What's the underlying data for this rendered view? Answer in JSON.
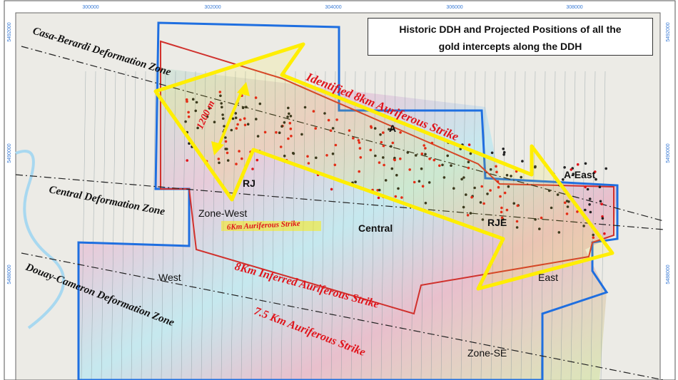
{
  "title": {
    "line1": "Historic DDH and Projected Positions of all the",
    "line2": "gold intercepts along the DDH"
  },
  "axes": {
    "easting_ticks": [
      "300000",
      "302000",
      "304000",
      "306000",
      "308000"
    ],
    "northing_ticks": [
      "5492000",
      "5490000",
      "5488000"
    ]
  },
  "deformation_zones": [
    "Casa-Berardi Deformation Zone",
    "Central Deformation Zone",
    "Douay-Cameron Deformation Zone"
  ],
  "areas": {
    "a": "A",
    "a_east": "A-East",
    "rj": "RJ",
    "zone_west": "Zone-West",
    "central": "Central",
    "rje": "RJE",
    "west": "West",
    "east": "East",
    "zone_se": "Zone-SE"
  },
  "annotations": {
    "identified": "Identified 8km Auriferous Strike",
    "width": "1200 m",
    "six_km": "6Km Auriferous Strike",
    "eight_km_inferred": "8Km Inferred Auriferous Strike",
    "seven_five_km": "7.5 Km Auriferous Strike"
  },
  "colors": {
    "property_boundary": "#1f6fe0",
    "claim_boundary": "#d0312d",
    "arrow": "#ffee00",
    "strike_text": "#e0141b",
    "drill_hole": "#e0141b"
  }
}
